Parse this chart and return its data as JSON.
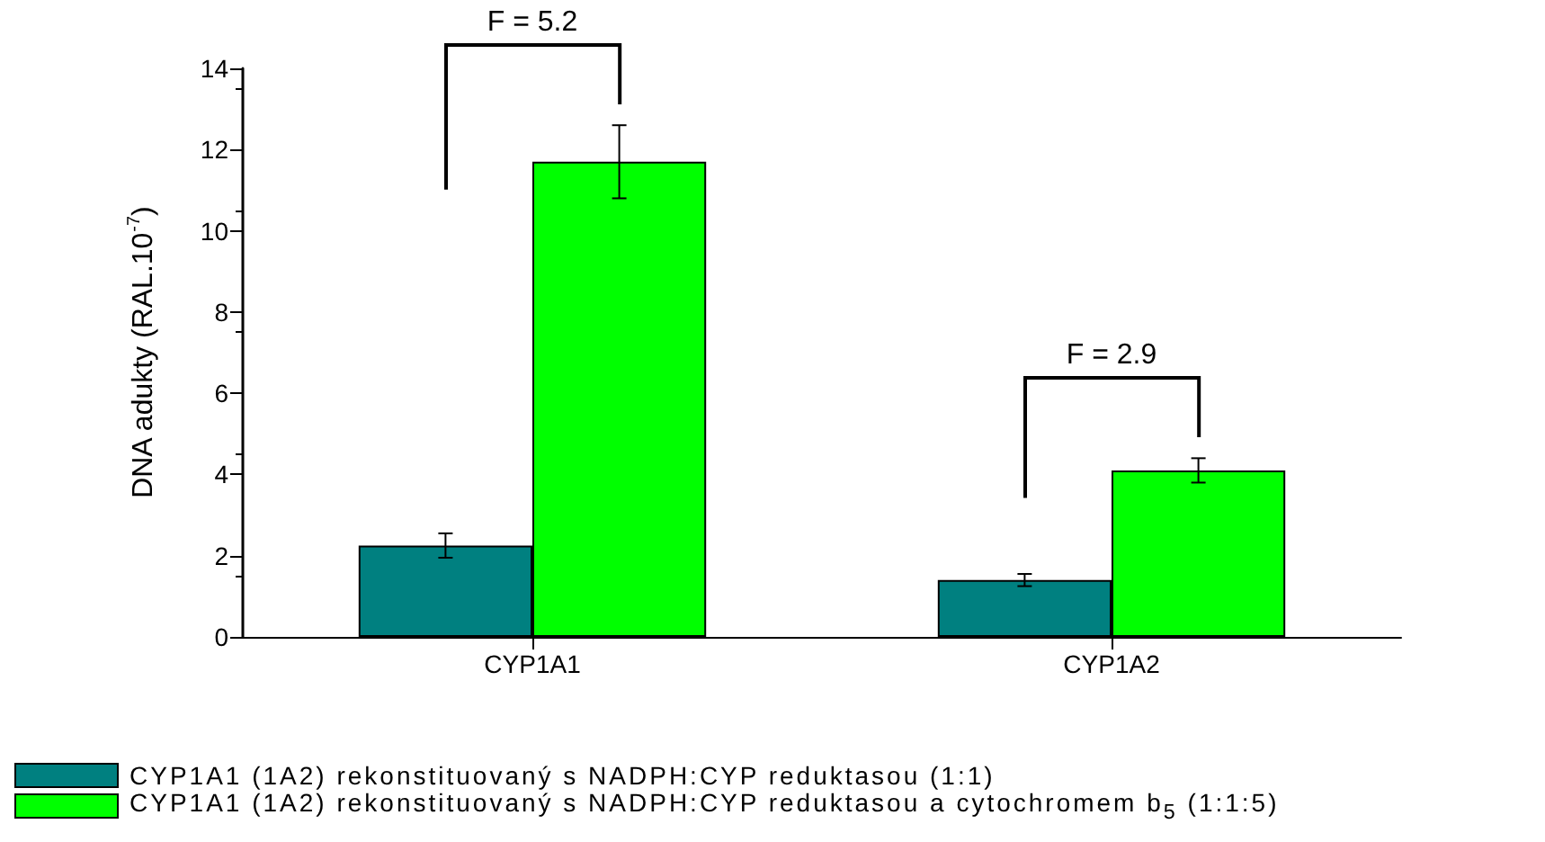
{
  "chart_data": {
    "type": "bar",
    "ylabel": "DNA adukty (RAL.10$^{-7}$)",
    "categories": [
      "CYP1A1",
      "CYP1A2"
    ],
    "series": [
      {
        "name": "CYP1A1 (1A2) rekonstituovaný s NADPH:CYP reduktasou (1:1)",
        "color": "#008080",
        "values": [
          2.25,
          1.4
        ],
        "errors": [
          0.3,
          0.15
        ]
      },
      {
        "name": "CYP1A1 (1A2) rekonstituovaný s NADPH:CYP reduktasou a cytochromem b$_{5}$ (1:1:5)",
        "color": "#00ff00",
        "values": [
          11.7,
          4.1
        ],
        "errors": [
          0.9,
          0.3
        ]
      }
    ],
    "ylim": [
      0,
      14
    ],
    "yticks": [
      0,
      2,
      4,
      6,
      8,
      10,
      12,
      14
    ],
    "grid": false,
    "legend": "bottom left",
    "annotations": [
      "F = 5.2",
      "F = 2.9"
    ]
  }
}
